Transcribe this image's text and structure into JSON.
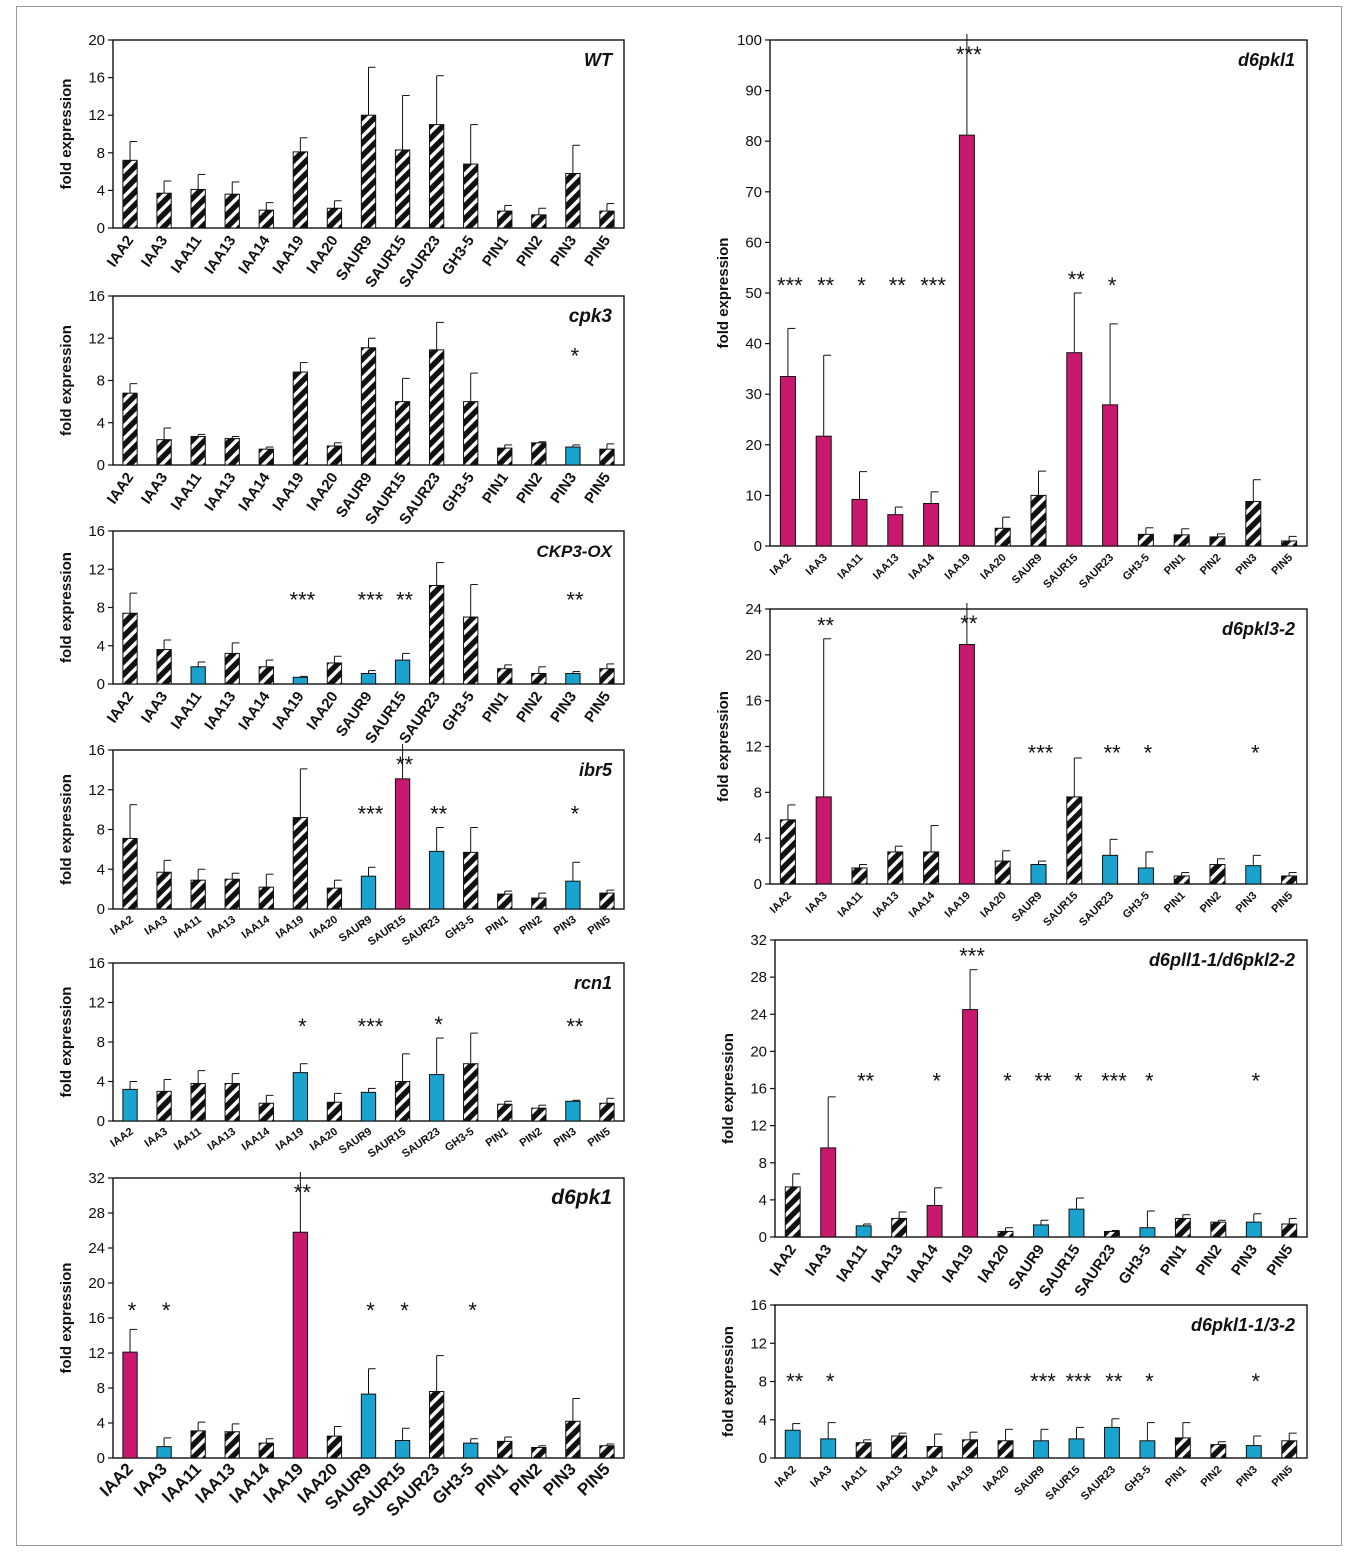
{
  "colors": {
    "pink": "#c8196e",
    "blue": "#1aa3cf",
    "black": "#111111"
  },
  "categories": [
    "IAA2",
    "IAA3",
    "IAA11",
    "IAA13",
    "IAA14",
    "IAA19",
    "IAA20",
    "SAUR9",
    "SAUR15",
    "SAUR23",
    "GH3-5",
    "PIN1",
    "PIN2",
    "PIN3",
    "PIN5"
  ],
  "y_axis_label": "fold expression",
  "chart_data": [
    {
      "type": "bar",
      "title": "WT",
      "ylim": [
        0,
        20
      ],
      "ticks": [
        0,
        4,
        8,
        12,
        16,
        20
      ],
      "values": [
        7.2,
        3.7,
        4.1,
        3.6,
        1.9,
        8.1,
        2.1,
        12,
        8.3,
        11,
        6.8,
        1.8,
        1.4,
        5.8,
        1.8
      ],
      "errors": [
        2.0,
        1.3,
        1.6,
        1.3,
        0.8,
        1.5,
        0.8,
        5.1,
        5.8,
        5.2,
        4.2,
        0.6,
        0.7,
        3.0,
        0.8
      ],
      "kinds": [
        "h",
        "h",
        "h",
        "h",
        "h",
        "h",
        "h",
        "h",
        "h",
        "h",
        "h",
        "h",
        "h",
        "h",
        "h"
      ],
      "stars": [
        "",
        "",
        "",
        "",
        "",
        "",
        "",
        "",
        "",
        "",
        "",
        "",
        "",
        "",
        ""
      ]
    },
    {
      "type": "bar",
      "title": "cpk3",
      "ylim": [
        0,
        16
      ],
      "ticks": [
        0,
        4,
        8,
        12,
        16
      ],
      "values": [
        6.8,
        2.4,
        2.7,
        2.5,
        1.5,
        8.8,
        1.8,
        11.1,
        6,
        10.9,
        6,
        1.6,
        2.1,
        1.7,
        1.5
      ],
      "errors": [
        0.9,
        1.1,
        0.2,
        0.2,
        0.2,
        0.9,
        0.3,
        0.9,
        2.2,
        2.6,
        2.7,
        0.3,
        0.1,
        0.2,
        0.5
      ],
      "kinds": [
        "h",
        "h",
        "h",
        "h",
        "h",
        "h",
        "h",
        "h",
        "h",
        "h",
        "h",
        "h",
        "h",
        "b",
        "h"
      ],
      "stars": [
        "",
        "",
        "",
        "",
        "",
        "",
        "",
        "",
        "",
        "",
        "",
        "",
        "",
        "*",
        ""
      ]
    },
    {
      "type": "bar",
      "title": "CKP3-OX",
      "ylim": [
        0,
        16
      ],
      "ticks": [
        0,
        4,
        8,
        12,
        16
      ],
      "values": [
        7.4,
        3.6,
        1.8,
        3.2,
        1.8,
        0.7,
        2.2,
        1.1,
        2.5,
        10.3,
        7,
        1.6,
        1.1,
        1.1,
        1.6
      ],
      "errors": [
        2.1,
        1.0,
        0.5,
        1.1,
        0.7,
        0.1,
        0.7,
        0.3,
        0.7,
        2.4,
        3.4,
        0.4,
        0.7,
        0.2,
        0.5
      ],
      "kinds": [
        "h",
        "h",
        "b",
        "h",
        "h",
        "b",
        "h",
        "b",
        "b",
        "h",
        "h",
        "h",
        "h",
        "b",
        "h"
      ],
      "stars": [
        "",
        "",
        "",
        "",
        "",
        "***",
        "",
        "***",
        "**",
        "",
        "",
        "",
        "",
        "**",
        ""
      ]
    },
    {
      "type": "bar",
      "title": "ibr5",
      "ylim": [
        0,
        16
      ],
      "ticks": [
        0,
        4,
        8,
        12,
        16
      ],
      "values": [
        7.1,
        3.7,
        2.9,
        3,
        2.2,
        9.2,
        2.1,
        3.3,
        13.1,
        5.8,
        5.7,
        1.5,
        1.1,
        2.8,
        1.6
      ],
      "errors": [
        3.4,
        1.2,
        1.1,
        0.6,
        1.3,
        4.9,
        0.8,
        0.9,
        3.4,
        2.4,
        2.5,
        0.3,
        0.5,
        1.9,
        0.3
      ],
      "kinds": [
        "h",
        "h",
        "h",
        "h",
        "h",
        "h",
        "h",
        "b",
        "p",
        "b",
        "h",
        "h",
        "h",
        "b",
        "h"
      ],
      "stars": [
        "",
        "",
        "",
        "",
        "",
        "",
        "",
        "***",
        "**",
        "**",
        "",
        "",
        "",
        "*",
        ""
      ]
    },
    {
      "type": "bar",
      "title": "rcn1",
      "ylim": [
        0,
        16
      ],
      "ticks": [
        0,
        4,
        8,
        12,
        16
      ],
      "values": [
        3.2,
        3,
        3.8,
        3.8,
        1.8,
        4.9,
        1.9,
        2.9,
        4,
        4.7,
        5.8,
        1.7,
        1.3,
        2,
        1.8
      ],
      "errors": [
        0.8,
        1.2,
        1.3,
        1.0,
        0.8,
        0.9,
        0.9,
        0.4,
        2.8,
        3.7,
        3.1,
        0.3,
        0.3,
        0.1,
        0.5
      ],
      "kinds": [
        "b",
        "h",
        "h",
        "h",
        "h",
        "b",
        "h",
        "b",
        "h",
        "b",
        "h",
        "h",
        "h",
        "b",
        "h"
      ],
      "stars": [
        "",
        "",
        "",
        "",
        "",
        "*",
        "",
        "***",
        "",
        "*",
        "",
        "",
        "",
        "**",
        ""
      ]
    },
    {
      "type": "bar",
      "title": "d6pk1",
      "ylim": [
        0,
        32
      ],
      "ticks": [
        0,
        4,
        8,
        12,
        16,
        20,
        24,
        28,
        32
      ],
      "values": [
        12.1,
        1.3,
        3.1,
        3,
        1.7,
        25.8,
        2.5,
        7.3,
        2,
        7.6,
        1.7,
        1.9,
        1.2,
        4.2,
        1.4
      ],
      "errors": [
        2.6,
        1.0,
        1.0,
        0.9,
        0.5,
        6.6,
        1.1,
        2.9,
        1.4,
        4.1,
        0.5,
        0.5,
        0.2,
        2.6,
        0.2
      ],
      "kinds": [
        "p",
        "b",
        "h",
        "h",
        "h",
        "p",
        "h",
        "b",
        "b",
        "h",
        "b",
        "h",
        "h",
        "h",
        "h"
      ],
      "stars": [
        "*",
        "*",
        "",
        "",
        "",
        "**",
        "",
        "*",
        "*",
        "",
        "*",
        "",
        "",
        "",
        ""
      ]
    },
    {
      "type": "bar",
      "title": "d6pkl1",
      "ylim": [
        0,
        100
      ],
      "ticks": [
        0,
        10,
        20,
        30,
        40,
        50,
        60,
        70,
        80,
        90,
        100
      ],
      "values": [
        33.5,
        21.7,
        9.2,
        6.2,
        8.4,
        81.2,
        3.5,
        10,
        38.2,
        27.9,
        2.3,
        2.2,
        1.8,
        8.8,
        1
      ],
      "errors": [
        9.5,
        16,
        5.5,
        1.5,
        2.3,
        19,
        2.2,
        4.8,
        11.8,
        16,
        1.3,
        1.2,
        0.6,
        4.3,
        0.9
      ],
      "kinds": [
        "p",
        "p",
        "p",
        "p",
        "p",
        "p",
        "h",
        "h",
        "p",
        "p",
        "h",
        "h",
        "h",
        "h",
        "h"
      ],
      "stars": [
        "***",
        "**",
        "*",
        "**",
        "***",
        "***",
        "",
        "",
        "**",
        "*",
        "",
        "",
        "",
        "",
        ""
      ]
    },
    {
      "type": "bar",
      "title": "d6pkl3-2",
      "ylim": [
        0,
        24
      ],
      "ticks": [
        0,
        4,
        8,
        12,
        16,
        20,
        24
      ],
      "values": [
        5.6,
        7.6,
        1.4,
        2.8,
        2.8,
        20.9,
        2,
        1.7,
        7.6,
        2.5,
        1.4,
        0.7,
        1.7,
        1.6,
        0.7
      ],
      "errors": [
        1.3,
        13.8,
        0.3,
        0.5,
        2.3,
        3.7,
        0.9,
        0.3,
        3.4,
        1.4,
        1.4,
        0.3,
        0.5,
        0.9,
        0.3
      ],
      "kinds": [
        "h",
        "p",
        "h",
        "h",
        "h",
        "p",
        "h",
        "b",
        "h",
        "b",
        "b",
        "h",
        "h",
        "b",
        "h"
      ],
      "stars": [
        "",
        "**",
        "",
        "",
        "",
        "**",
        "",
        "***",
        "",
        "**",
        "*",
        "",
        "",
        "*",
        ""
      ]
    },
    {
      "type": "bar",
      "title": "d6pll1-1/d6pkl2-2",
      "ylim": [
        0,
        32
      ],
      "ticks": [
        0,
        4,
        8,
        12,
        16,
        20,
        24,
        28,
        32
      ],
      "values": [
        5.4,
        9.6,
        1.2,
        2,
        3.4,
        24.5,
        0.6,
        1.3,
        3,
        0.6,
        1,
        2,
        1.6,
        1.6,
        1.4
      ],
      "errors": [
        1.4,
        5.5,
        0.2,
        0.7,
        1.9,
        4.3,
        0.4,
        0.5,
        1.2,
        0.1,
        1.8,
        0.4,
        0.2,
        0.9,
        0.6
      ],
      "kinds": [
        "h",
        "p",
        "b",
        "h",
        "p",
        "p",
        "h",
        "b",
        "b",
        "h",
        "b",
        "h",
        "h",
        "b",
        "h"
      ],
      "stars": [
        "",
        "",
        "**",
        "",
        "*",
        "***",
        "*",
        "**",
        "*",
        "***",
        "*",
        "",
        "",
        "*",
        ""
      ]
    },
    {
      "type": "bar",
      "title": "d6pkl1-1/3-2",
      "ylim": [
        0,
        16
      ],
      "ticks": [
        0,
        4,
        8,
        12,
        16
      ],
      "values": [
        2.9,
        2,
        1.6,
        2.3,
        1.2,
        1.9,
        1.8,
        1.8,
        2,
        3.2,
        1.8,
        2.1,
        1.4,
        1.3,
        1.8
      ],
      "errors": [
        0.7,
        1.7,
        0.3,
        0.3,
        1.3,
        0.8,
        1.2,
        1.2,
        1.2,
        0.9,
        1.9,
        1.6,
        0.3,
        1.0,
        0.8
      ],
      "kinds": [
        "b",
        "b",
        "h",
        "h",
        "h",
        "h",
        "h",
        "b",
        "b",
        "b",
        "b",
        "h",
        "h",
        "b",
        "h"
      ],
      "stars": [
        "**",
        "*",
        "",
        "",
        "",
        "",
        "",
        "***",
        "***",
        "**",
        "*",
        "",
        "",
        "*",
        ""
      ]
    }
  ]
}
